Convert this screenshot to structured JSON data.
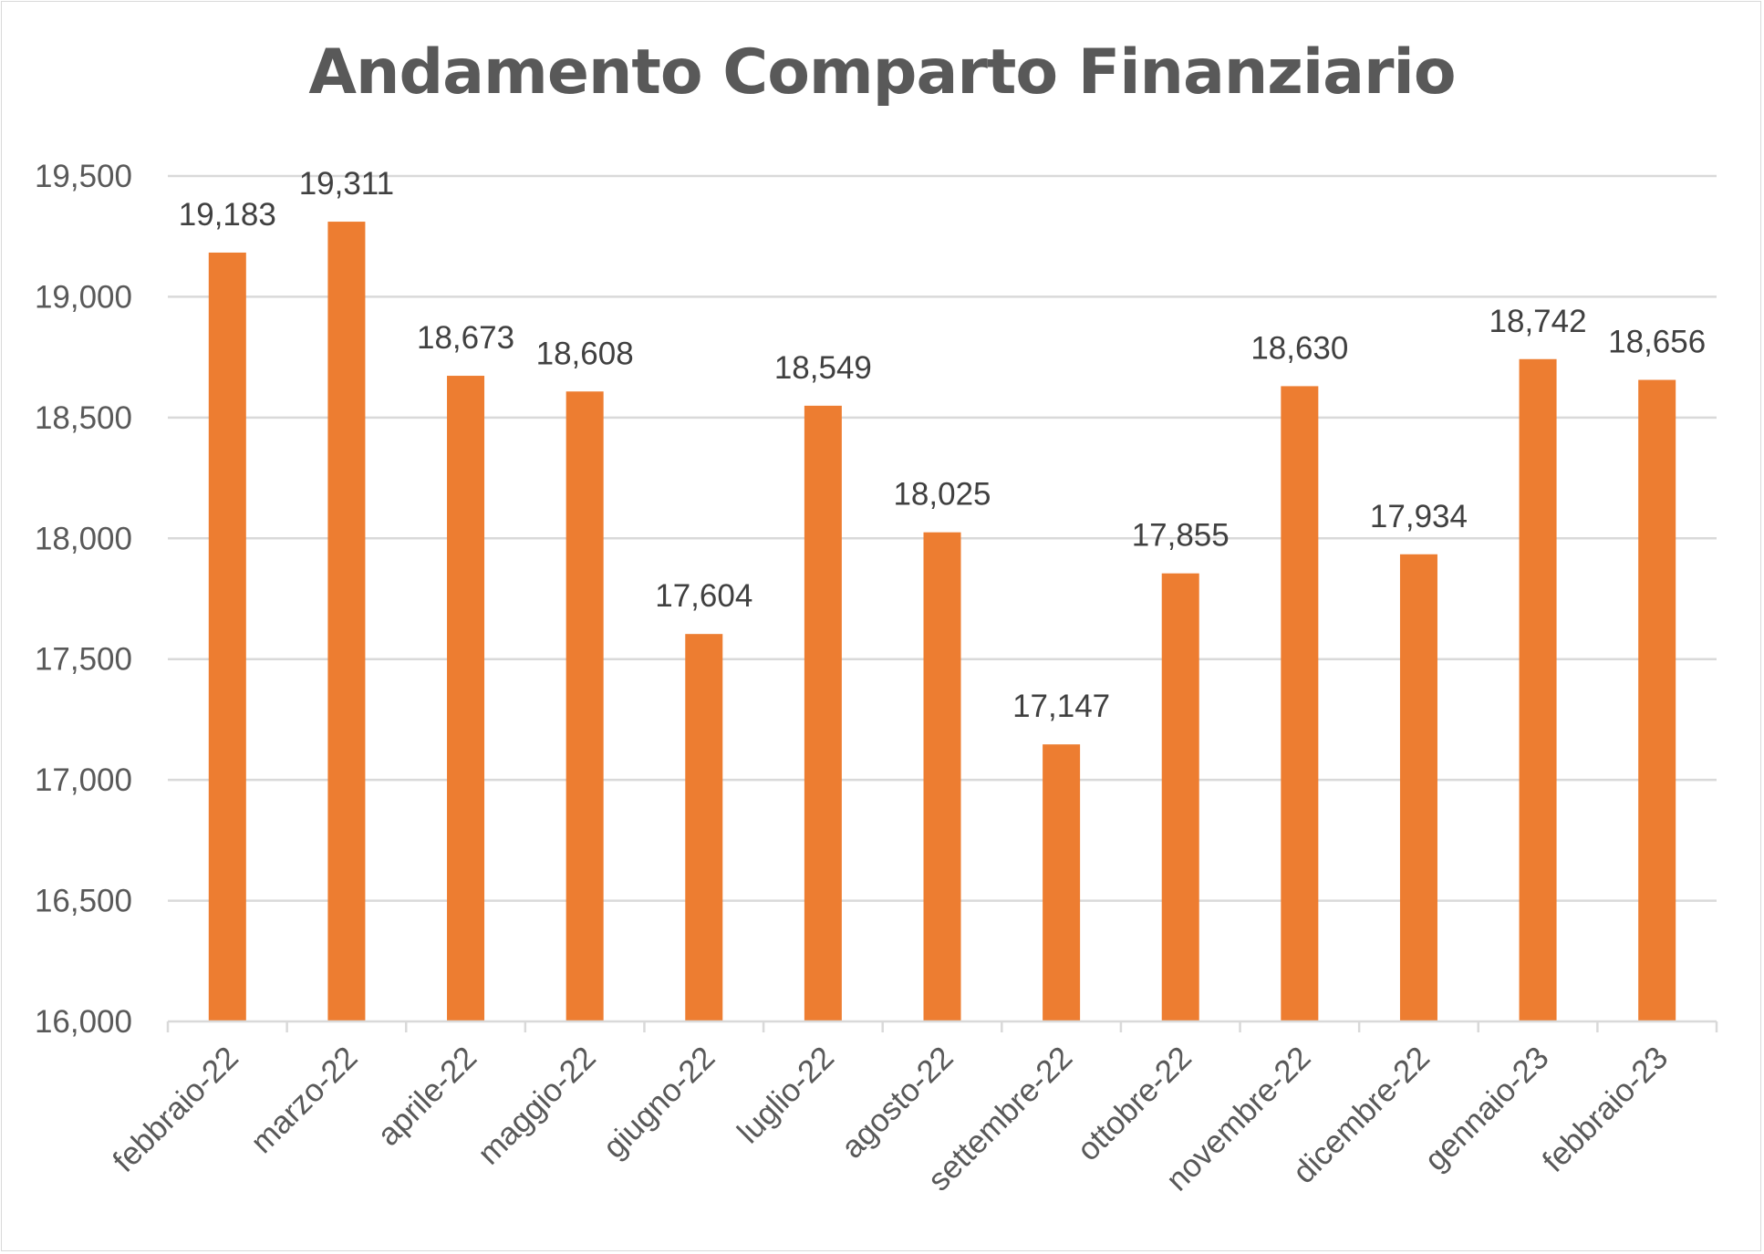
{
  "chart_data": {
    "type": "bar",
    "title": "Andamento Comparto Finanziario",
    "xlabel": "",
    "ylabel": "",
    "categories": [
      "febbraio-22",
      "marzo-22",
      "aprile-22",
      "maggio-22",
      "giugno-22",
      "luglio-22",
      "agosto-22",
      "settembre-22",
      "ottobre-22",
      "novembre-22",
      "dicembre-22",
      "gennaio-23",
      "febbraio-23"
    ],
    "values": [
      19183,
      19311,
      18673,
      18608,
      17604,
      18549,
      18025,
      17147,
      17855,
      18630,
      17934,
      18742,
      18656
    ],
    "data_labels": [
      "19,183",
      "19,311",
      "18,673",
      "18,608",
      "17,604",
      "18,549",
      "18,025",
      "17,147",
      "17,855",
      "18,630",
      "17,934",
      "18,742",
      "18,656"
    ],
    "ylim": [
      16000,
      19500
    ],
    "yticks": [
      16000,
      16500,
      17000,
      17500,
      18000,
      18500,
      19000,
      19500
    ],
    "ytick_labels": [
      "16,000",
      "16,500",
      "17,000",
      "17,500",
      "18,000",
      "18,500",
      "19,000",
      "19,500"
    ],
    "grid": true,
    "legend": "none",
    "colors": {
      "bar": "#ED7D31",
      "grid": "#d9d9d9",
      "text": "#595959"
    }
  }
}
